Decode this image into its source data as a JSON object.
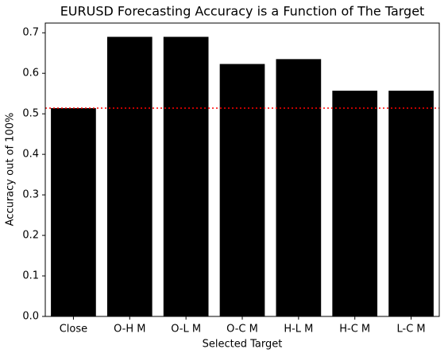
{
  "chart_data": {
    "type": "bar",
    "title": "EURUSD Forecasting Accuracy is a Function of The Target",
    "x_label": "Selected Target",
    "y_label": "Accuracy out of 100%",
    "categories": [
      "Close",
      "O-H M",
      "O-L M",
      "O-C M",
      "H-L M",
      "H-C M",
      "L-C M"
    ],
    "values": [
      0.514,
      0.69,
      0.69,
      0.623,
      0.635,
      0.557,
      0.557
    ],
    "color": "#000000",
    "ylim": [
      0,
      0.724
    ],
    "yticks": [
      0.0,
      0.1,
      0.2,
      0.3,
      0.4,
      0.5,
      0.6,
      0.7
    ],
    "reference_line": {
      "value": 0.514,
      "color": "#ff0000"
    }
  }
}
